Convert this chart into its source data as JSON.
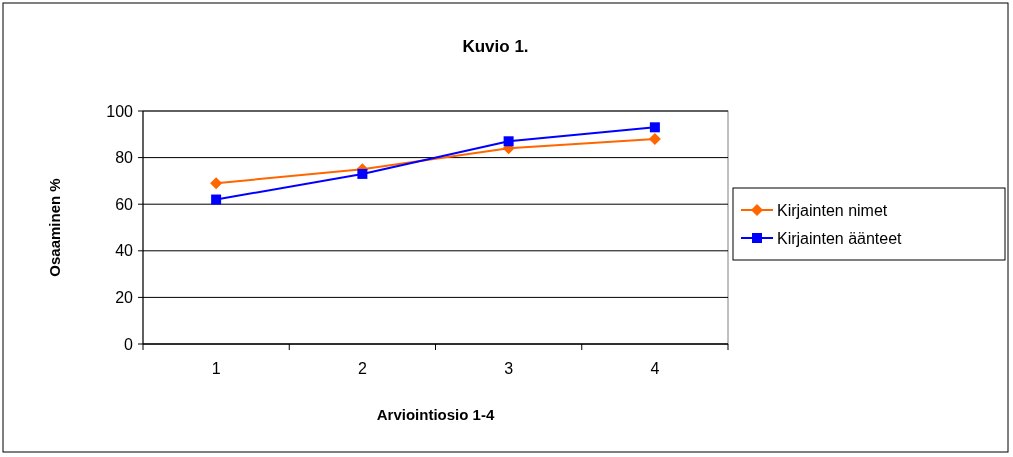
{
  "chart_data": {
    "type": "line",
    "title": "Kuvio 1.",
    "xlabel": "Arviointiosio 1-4",
    "ylabel": "Osaaminen %",
    "categories": [
      "1",
      "2",
      "3",
      "4"
    ],
    "ylim": [
      0,
      100
    ],
    "yticks": [
      0,
      20,
      40,
      60,
      80,
      100
    ],
    "grid": "y",
    "legend": "right",
    "series": [
      {
        "name": "Kirjainten nimet",
        "color": "#ff6600",
        "marker": "diamond",
        "values": [
          69,
          75,
          84,
          88
        ]
      },
      {
        "name": "Kirjainten äänteet",
        "color": "#0000ff",
        "marker": "square",
        "values": [
          62,
          73,
          87,
          93
        ]
      }
    ]
  }
}
